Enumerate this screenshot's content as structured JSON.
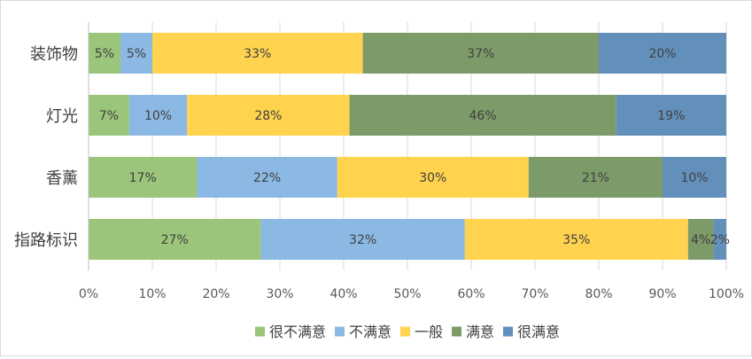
{
  "chart_data": {
    "type": "bar",
    "orientation": "horizontal",
    "stacked": "percent",
    "title": "",
    "xlabel": "",
    "ylabel": "",
    "xlim": [
      0,
      100
    ],
    "x_ticks": [
      "0%",
      "10%",
      "20%",
      "30%",
      "40%",
      "50%",
      "60%",
      "70%",
      "80%",
      "90%",
      "100%"
    ],
    "categories": [
      "装饰物",
      "灯光",
      "香薰",
      "指路标识"
    ],
    "series": [
      {
        "name": "很不满意",
        "color": "#9ac57a",
        "values": [
          5,
          7,
          17,
          27
        ]
      },
      {
        "name": "不满意",
        "color": "#8cb9e3",
        "values": [
          5,
          10,
          22,
          32
        ]
      },
      {
        "name": "一般",
        "color": "#ffd34e",
        "values": [
          33,
          28,
          30,
          35
        ]
      },
      {
        "name": "满意",
        "color": "#7c9b68",
        "values": [
          37,
          46,
          21,
          4
        ]
      },
      {
        "name": "很满意",
        "color": "#6390bb",
        "values": [
          20,
          19,
          10,
          2
        ]
      }
    ],
    "data_label_suffix": "%",
    "grid": true,
    "legend_position": "bottom"
  }
}
